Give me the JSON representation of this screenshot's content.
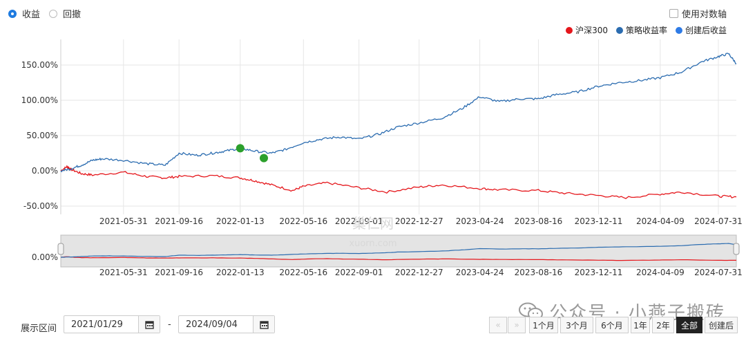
{
  "options": {
    "mode_return": "收益",
    "mode_drawdown": "回撤",
    "log_axis": "使用对数轴"
  },
  "legend": [
    {
      "name": "沪深300",
      "color": "#e5161b"
    },
    {
      "name": "策略收益率",
      "color": "#2b6cb0"
    },
    {
      "name": "创建后收益",
      "color": "#2e7be6"
    }
  ],
  "chart_data": {
    "type": "line",
    "title": "",
    "xlabel": "",
    "ylabel": "",
    "y_tick_labels": [
      "150.00%",
      "100.00%",
      "50.00%",
      "0.00%",
      "-50.00%"
    ],
    "y_ticks": [
      150,
      100,
      50,
      0,
      -50
    ],
    "ylim": [
      -60,
      175
    ],
    "x_tick_labels": [
      "2021-05-31",
      "2021-09-16",
      "2022-01-13",
      "2022-05-16",
      "2022-09-01",
      "2022-12-27",
      "2023-04-24",
      "2023-08-16",
      "2023-12-11",
      "2024-04-09",
      "2024-07-31"
    ],
    "xlim": [
      "2021-01-29",
      "2024-09-04"
    ],
    "grid": true,
    "series": [
      {
        "name": "策略收益率",
        "color": "#2b6cb0",
        "dates": [
          "2021-01-29",
          "2021-02-18",
          "2021-03-10",
          "2021-04-01",
          "2021-04-20",
          "2021-05-31",
          "2021-07-15",
          "2021-08-20",
          "2021-09-16",
          "2021-10-20",
          "2021-11-20",
          "2021-12-15",
          "2022-01-13",
          "2022-02-10",
          "2022-03-15",
          "2022-04-10",
          "2022-05-16",
          "2022-06-20",
          "2022-07-25",
          "2022-09-01",
          "2022-10-10",
          "2022-11-15",
          "2022-12-27",
          "2023-02-10",
          "2023-03-20",
          "2023-04-24",
          "2023-06-01",
          "2023-07-10",
          "2023-08-16",
          "2023-09-20",
          "2023-11-01",
          "2023-12-11",
          "2024-01-20",
          "2024-03-01",
          "2024-04-09",
          "2024-05-20",
          "2024-06-30",
          "2024-07-31",
          "2024-08-20",
          "2024-09-04"
        ],
        "values": [
          0,
          3,
          8,
          15,
          17,
          15,
          10,
          8,
          25,
          22,
          25,
          28,
          32,
          28,
          25,
          30,
          40,
          45,
          48,
          45,
          52,
          62,
          68,
          75,
          88,
          105,
          98,
          102,
          102,
          108,
          112,
          120,
          125,
          128,
          132,
          140,
          155,
          162,
          166,
          152
        ]
      },
      {
        "name": "沪深300",
        "color": "#e5161b",
        "dates": [
          "2021-01-29",
          "2021-02-10",
          "2021-02-18",
          "2021-03-10",
          "2021-04-01",
          "2021-05-31",
          "2021-07-15",
          "2021-08-20",
          "2021-09-16",
          "2021-11-20",
          "2022-01-13",
          "2022-02-10",
          "2022-03-15",
          "2022-04-25",
          "2022-05-16",
          "2022-07-01",
          "2022-09-01",
          "2022-10-25",
          "2022-12-27",
          "2023-02-10",
          "2023-04-24",
          "2023-06-01",
          "2023-08-16",
          "2023-10-10",
          "2023-12-11",
          "2024-02-02",
          "2024-04-09",
          "2024-05-20",
          "2024-07-31",
          "2024-09-04"
        ],
        "values": [
          0,
          6,
          2,
          -4,
          -6,
          -2,
          -8,
          -10,
          -8,
          -7,
          -10,
          -14,
          -20,
          -28,
          -22,
          -17,
          -24,
          -30,
          -23,
          -20,
          -25,
          -27,
          -28,
          -32,
          -35,
          -38,
          -33,
          -30,
          -36,
          -37
        ]
      }
    ],
    "markers": [
      {
        "date": "2022-01-13",
        "value": 32,
        "color": "#2ca02c"
      },
      {
        "date": "2022-02-28",
        "value": 18,
        "color": "#2ca02c"
      }
    ],
    "navigator": {
      "y_tick_label": "0.00%",
      "x_tick_labels": [
        "2021-05-31",
        "2021-09-16",
        "2022-01-13",
        "2022-05-16",
        "2022-09-01",
        "2022-12-27",
        "2023-04-24",
        "2023-08-16",
        "2023-12-11",
        "2024-04-09",
        "2024-07-31"
      ]
    }
  },
  "chart_watermark": {
    "line1": "巢仁网",
    "line2": "xuorn.com"
  },
  "controls": {
    "range_label": "展示区间",
    "start_date": "2021/01/29",
    "dash": "-",
    "end_date": "2024/09/04",
    "buttons": [
      "1个月",
      "3个月",
      "6个月",
      "1年",
      "2年",
      "全部",
      "创建后"
    ],
    "active_button": "全部"
  },
  "watermark": {
    "text": "公众号 · 小燕子搬砖",
    "icon": "wechat-icon"
  }
}
